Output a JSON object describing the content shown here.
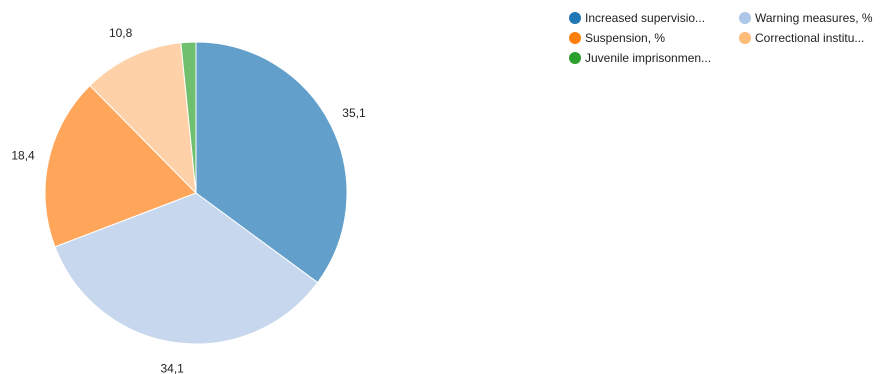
{
  "chart_data": {
    "type": "pie",
    "title": "",
    "slices": [
      {
        "label": "Increased supervisio...",
        "value": 35.1,
        "value_label": "35,1",
        "color": "#62a0cb",
        "legend_color": "#1f77b4"
      },
      {
        "label": "Warning measures, %",
        "value": 34.1,
        "value_label": "34,1",
        "color": "#c7d8ee",
        "legend_color": "#aec7e8"
      },
      {
        "label": "Suspension, %",
        "value": 18.4,
        "value_label": "18,4",
        "color": "#ffa65a",
        "legend_color": "#ff7f0e"
      },
      {
        "label": "Correctional institu...",
        "value": 10.8,
        "value_label": "10,8",
        "color": "#ffd1a8",
        "legend_color": "#ffbb78"
      },
      {
        "label": "Juvenile imprisonmen...",
        "value": 1.6,
        "value_label": "",
        "color": "#6fbf6f",
        "legend_color": "#2ca02c"
      }
    ],
    "legend_position": "top-right"
  }
}
